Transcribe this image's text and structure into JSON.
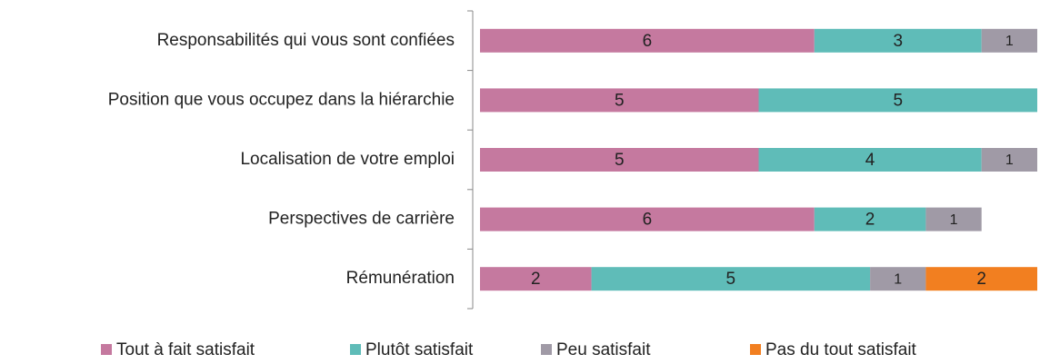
{
  "chart_data": {
    "type": "stacked_bar_horizontal",
    "categories": [
      "Responsabilités qui vous sont confiées",
      "Position que vous occupez dans la hiérarchie",
      "Localisation de votre emploi",
      "Perspectives de carrière",
      "Rémunération"
    ],
    "series": [
      {
        "name": "Tout à fait satisfait",
        "color": "#c5799f",
        "values": [
          6,
          5,
          5,
          6,
          2
        ]
      },
      {
        "name": "Plutôt satisfait",
        "color": "#5fbcb8",
        "values": [
          3,
          5,
          4,
          2,
          5
        ]
      },
      {
        "name": "Peu satisfait",
        "color": "#a09aa6",
        "values": [
          1,
          null,
          1,
          1,
          1
        ]
      },
      {
        "name": "Pas du tout satisfait",
        "color": "#f27f20",
        "values": [
          null,
          null,
          null,
          null,
          2
        ]
      }
    ],
    "xlim": [
      0,
      10
    ],
    "legend": "bottom"
  }
}
